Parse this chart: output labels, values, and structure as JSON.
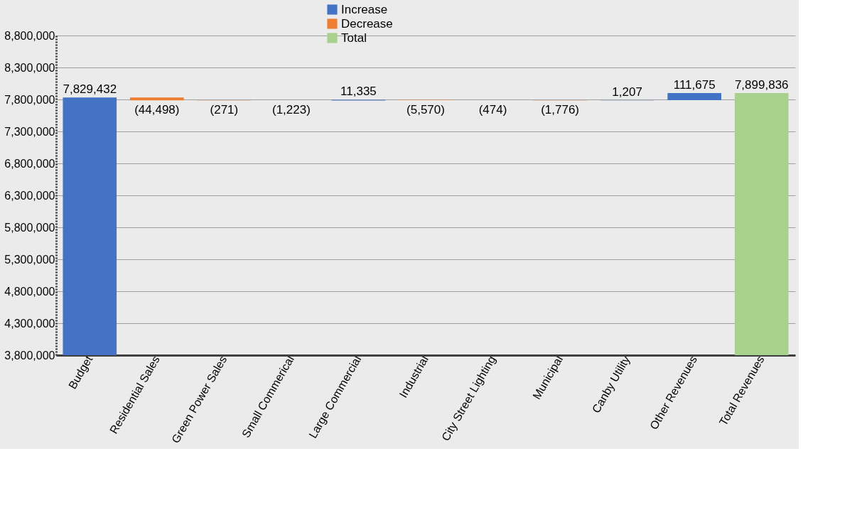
{
  "chart_data": {
    "type": "bar",
    "categories": [
      "Budget",
      "Residential Sales",
      "Green Power Sales",
      "Small Commerical",
      "Large Commercial",
      "Industrial",
      "City Street Lighting",
      "Municipal",
      "Canby Utility",
      "Other Revenues",
      "Total Revenues"
    ],
    "series": [
      {
        "name": "Increase",
        "color": "#4472c4",
        "base": [
          0,
          null,
          null,
          null,
          7783440,
          null,
          null,
          null,
          7786955,
          7788162,
          null
        ],
        "values": [
          7829432,
          null,
          null,
          null,
          11335,
          null,
          null,
          null,
          1207,
          111675,
          null
        ],
        "value_labels": [
          "7,829,432",
          null,
          null,
          null,
          "11,335",
          null,
          null,
          null,
          "1,207",
          "111,675",
          null
        ]
      },
      {
        "name": "Decrease",
        "color": "#ed7d31",
        "base": [
          null,
          7829432,
          7784934,
          7784663,
          null,
          7794775,
          7789205,
          7788731,
          null,
          null,
          null
        ],
        "values": [
          null,
          -44498,
          -271,
          -1223,
          null,
          -5570,
          -474,
          -1776,
          null,
          null,
          null
        ],
        "value_labels": [
          null,
          "(44,498)",
          "(271)",
          "(1,223)",
          null,
          "(5,570)",
          "(474)",
          "(1,776)",
          null,
          null,
          null
        ]
      },
      {
        "name": "Total",
        "color": "#a9d18e",
        "base": [
          null,
          null,
          null,
          null,
          null,
          null,
          null,
          null,
          null,
          null,
          0
        ],
        "values": [
          null,
          null,
          null,
          null,
          null,
          null,
          null,
          null,
          null,
          null,
          7899836
        ],
        "value_labels": [
          null,
          null,
          null,
          null,
          null,
          null,
          null,
          null,
          null,
          null,
          "7,899,836"
        ]
      }
    ],
    "ylim": [
      3800000,
      8800000
    ],
    "yticks": [
      {
        "value": 3800000,
        "label": "3,800,000"
      },
      {
        "value": 4300000,
        "label": "4,300,000"
      },
      {
        "value": 4800000,
        "label": "4,800,000"
      },
      {
        "value": 5300000,
        "label": "5,300,000"
      },
      {
        "value": 5800000,
        "label": "5,800,000"
      },
      {
        "value": 6300000,
        "label": "6,300,000"
      },
      {
        "value": 6800000,
        "label": "6,800,000"
      },
      {
        "value": 7300000,
        "label": "7,300,000"
      },
      {
        "value": 7800000,
        "label": "7,800,000"
      },
      {
        "value": 8300000,
        "label": "8,300,000"
      },
      {
        "value": 8800000,
        "label": "8,800,000"
      }
    ],
    "grid": "y",
    "legend": "top"
  }
}
